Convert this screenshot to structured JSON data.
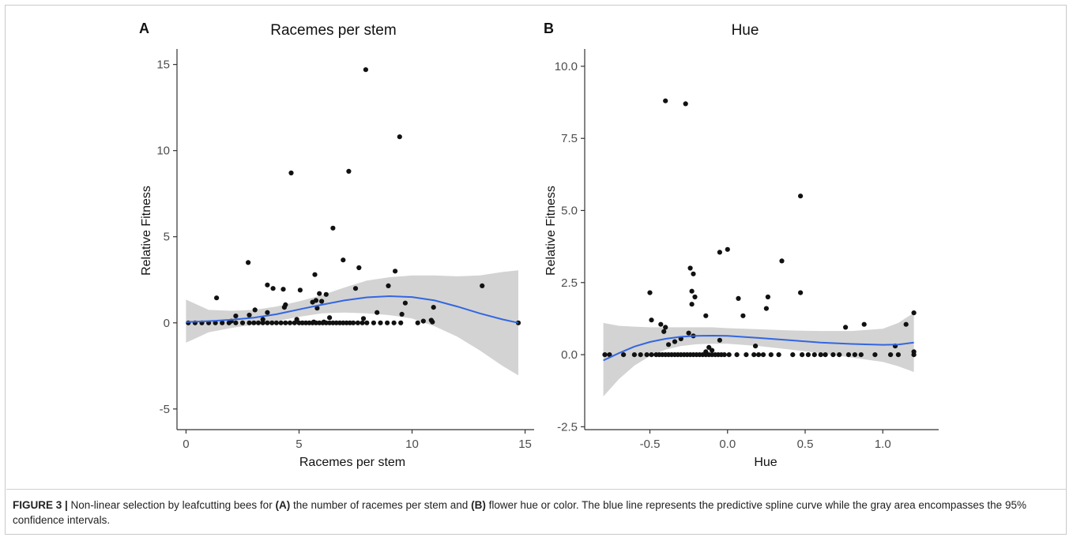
{
  "chart_data": [
    {
      "panel": "A",
      "type": "scatter",
      "title": "Racemes per stem",
      "xlabel": "Racemes per stem",
      "ylabel": "Relative Fitness",
      "xlim": [
        -0.4,
        15.4
      ],
      "ylim": [
        -6.2,
        15.9
      ],
      "xticks": [
        0,
        5,
        10,
        15
      ],
      "xtick_labels": [
        "0",
        "5",
        "10",
        "15"
      ],
      "yticks": [
        -5,
        0,
        5,
        10,
        15
      ],
      "ytick_labels": [
        "-5",
        "0",
        "5",
        "10",
        "15"
      ],
      "points": [
        [
          7.95,
          14.7
        ],
        [
          9.45,
          10.8
        ],
        [
          4.65,
          8.7
        ],
        [
          7.2,
          8.8
        ],
        [
          6.5,
          5.5
        ],
        [
          2.75,
          3.5
        ],
        [
          6.95,
          3.65
        ],
        [
          7.65,
          3.2
        ],
        [
          9.25,
          3.0
        ],
        [
          3.6,
          2.2
        ],
        [
          3.85,
          2.0
        ],
        [
          4.3,
          1.95
        ],
        [
          5.7,
          2.8
        ],
        [
          5.05,
          1.9
        ],
        [
          6.2,
          1.65
        ],
        [
          5.9,
          1.7
        ],
        [
          1.35,
          1.45
        ],
        [
          8.95,
          2.15
        ],
        [
          7.5,
          2.0
        ],
        [
          13.1,
          2.15
        ],
        [
          9.7,
          1.15
        ],
        [
          5.6,
          1.2
        ],
        [
          4.4,
          1.05
        ],
        [
          5.75,
          1.3
        ],
        [
          6.0,
          1.25
        ],
        [
          4.35,
          0.9
        ],
        [
          3.05,
          0.75
        ],
        [
          3.6,
          0.6
        ],
        [
          5.8,
          0.85
        ],
        [
          10.95,
          0.9
        ],
        [
          2.2,
          0.4
        ],
        [
          2.8,
          0.45
        ],
        [
          9.55,
          0.5
        ],
        [
          8.45,
          0.6
        ],
        [
          4.9,
          0.2
        ],
        [
          6.35,
          0.3
        ],
        [
          2.0,
          0.1
        ],
        [
          3.4,
          0.2
        ],
        [
          7.85,
          0.25
        ],
        [
          10.5,
          0.1
        ],
        [
          10.85,
          0.15
        ],
        [
          10.9,
          0.05
        ],
        [
          5.65,
          0.05
        ],
        [
          6.1,
          0.05
        ],
        [
          10.25,
          0.0
        ],
        [
          14.7,
          0.0
        ],
        [
          0.1,
          0.0
        ],
        [
          0.4,
          0.0
        ],
        [
          0.7,
          0.0
        ],
        [
          1.0,
          0.0
        ],
        [
          1.3,
          0.0
        ],
        [
          1.6,
          0.0
        ],
        [
          1.9,
          0.0
        ],
        [
          2.2,
          0.0
        ],
        [
          2.5,
          0.0
        ],
        [
          2.8,
          0.0
        ],
        [
          3.0,
          0.0
        ],
        [
          3.2,
          0.0
        ],
        [
          3.4,
          0.0
        ],
        [
          3.6,
          0.0
        ],
        [
          3.8,
          0.0
        ],
        [
          4.0,
          0.0
        ],
        [
          4.2,
          0.0
        ],
        [
          4.4,
          0.0
        ],
        [
          4.6,
          0.0
        ],
        [
          4.8,
          0.0
        ],
        [
          5.0,
          0.0
        ],
        [
          5.15,
          0.0
        ],
        [
          5.3,
          0.0
        ],
        [
          5.45,
          0.0
        ],
        [
          5.6,
          0.0
        ],
        [
          5.75,
          0.0
        ],
        [
          5.9,
          0.0
        ],
        [
          6.05,
          0.0
        ],
        [
          6.2,
          0.0
        ],
        [
          6.35,
          0.0
        ],
        [
          6.5,
          0.0
        ],
        [
          6.65,
          0.0
        ],
        [
          6.8,
          0.0
        ],
        [
          6.95,
          0.0
        ],
        [
          7.1,
          0.0
        ],
        [
          7.25,
          0.0
        ],
        [
          7.4,
          0.0
        ],
        [
          7.6,
          0.0
        ],
        [
          7.8,
          0.0
        ],
        [
          8.0,
          0.0
        ],
        [
          8.3,
          0.0
        ],
        [
          8.6,
          0.0
        ],
        [
          8.9,
          0.0
        ],
        [
          9.2,
          0.0
        ],
        [
          9.5,
          0.0
        ]
      ],
      "fit_curve": [
        [
          0,
          0.05
        ],
        [
          1,
          0.1
        ],
        [
          2,
          0.18
        ],
        [
          3,
          0.3
        ],
        [
          4,
          0.5
        ],
        [
          5,
          0.78
        ],
        [
          6,
          1.05
        ],
        [
          7,
          1.3
        ],
        [
          8,
          1.48
        ],
        [
          9,
          1.55
        ],
        [
          10,
          1.5
        ],
        [
          11,
          1.3
        ],
        [
          12,
          0.95
        ],
        [
          13,
          0.55
        ],
        [
          14,
          0.2
        ],
        [
          14.7,
          0.0
        ]
      ],
      "ci_upper": [
        [
          0,
          1.35
        ],
        [
          1,
          0.75
        ],
        [
          2,
          0.7
        ],
        [
          3,
          0.75
        ],
        [
          4,
          0.95
        ],
        [
          5,
          1.25
        ],
        [
          6,
          1.6
        ],
        [
          7,
          2.05
        ],
        [
          8,
          2.45
        ],
        [
          9,
          2.65
        ],
        [
          10,
          2.75
        ],
        [
          11,
          2.75
        ],
        [
          12,
          2.7
        ],
        [
          13,
          2.75
        ],
        [
          14,
          2.95
        ],
        [
          14.7,
          3.05
        ]
      ],
      "ci_lower": [
        [
          0,
          -1.15
        ],
        [
          1,
          -0.55
        ],
        [
          2,
          -0.3
        ],
        [
          3,
          -0.1
        ],
        [
          4,
          0.1
        ],
        [
          5,
          0.35
        ],
        [
          6,
          0.55
        ],
        [
          7,
          0.6
        ],
        [
          8,
          0.55
        ],
        [
          9,
          0.45
        ],
        [
          10,
          0.25
        ],
        [
          11,
          -0.2
        ],
        [
          12,
          -0.8
        ],
        [
          13,
          -1.6
        ],
        [
          14,
          -2.5
        ],
        [
          14.7,
          -3.05
        ]
      ]
    },
    {
      "panel": "B",
      "type": "scatter",
      "title": "Hue",
      "xlabel": "Hue",
      "ylabel": "Relative Fitness",
      "xlim": [
        -0.92,
        1.36
      ],
      "ylim": [
        -2.6,
        10.6
      ],
      "xticks": [
        -0.5,
        0.0,
        0.5,
        1.0
      ],
      "xtick_labels": [
        "-0.5",
        "0.0",
        "0.5",
        "1.0"
      ],
      "yticks": [
        -2.5,
        0.0,
        2.5,
        5.0,
        7.5,
        10.0
      ],
      "ytick_labels": [
        "-2.5",
        "0.0",
        "2.5",
        "5.0",
        "7.5",
        "10.0"
      ],
      "points": [
        [
          -0.4,
          8.8
        ],
        [
          -0.27,
          8.7
        ],
        [
          0.47,
          5.5
        ],
        [
          -0.05,
          3.55
        ],
        [
          0.0,
          3.65
        ],
        [
          0.35,
          3.25
        ],
        [
          -0.24,
          3.0
        ],
        [
          -0.22,
          2.8
        ],
        [
          -0.23,
          2.2
        ],
        [
          -0.5,
          2.15
        ],
        [
          0.47,
          2.15
        ],
        [
          -0.21,
          2.0
        ],
        [
          0.26,
          2.0
        ],
        [
          -0.23,
          1.75
        ],
        [
          0.07,
          1.95
        ],
        [
          0.25,
          1.6
        ],
        [
          0.1,
          1.35
        ],
        [
          -0.14,
          1.35
        ],
        [
          1.2,
          1.45
        ],
        [
          -0.49,
          1.2
        ],
        [
          -0.43,
          1.05
        ],
        [
          0.88,
          1.05
        ],
        [
          1.15,
          1.05
        ],
        [
          -0.4,
          0.95
        ],
        [
          -0.41,
          0.8
        ],
        [
          0.76,
          0.95
        ],
        [
          -0.3,
          0.55
        ],
        [
          -0.22,
          0.65
        ],
        [
          -0.25,
          0.75
        ],
        [
          -0.05,
          0.5
        ],
        [
          0.18,
          0.3
        ],
        [
          -0.34,
          0.45
        ],
        [
          -0.38,
          0.35
        ],
        [
          -0.12,
          0.25
        ],
        [
          -0.1,
          0.15
        ],
        [
          -0.14,
          0.1
        ],
        [
          1.08,
          0.3
        ],
        [
          1.2,
          0.1
        ],
        [
          -0.79,
          0.0
        ],
        [
          -0.76,
          0.0
        ],
        [
          -0.67,
          0.0
        ],
        [
          -0.6,
          0.0
        ],
        [
          -0.56,
          0.0
        ],
        [
          -0.52,
          0.0
        ],
        [
          -0.49,
          0.0
        ],
        [
          -0.46,
          0.0
        ],
        [
          -0.44,
          0.0
        ],
        [
          -0.42,
          0.0
        ],
        [
          -0.4,
          0.0
        ],
        [
          -0.38,
          0.0
        ],
        [
          -0.36,
          0.0
        ],
        [
          -0.34,
          0.0
        ],
        [
          -0.32,
          0.0
        ],
        [
          -0.3,
          0.0
        ],
        [
          -0.28,
          0.0
        ],
        [
          -0.26,
          0.0
        ],
        [
          -0.24,
          0.0
        ],
        [
          -0.22,
          0.0
        ],
        [
          -0.2,
          0.0
        ],
        [
          -0.18,
          0.0
        ],
        [
          -0.16,
          0.0
        ],
        [
          -0.14,
          0.0
        ],
        [
          -0.12,
          0.0
        ],
        [
          -0.1,
          0.0
        ],
        [
          -0.08,
          0.0
        ],
        [
          -0.06,
          0.0
        ],
        [
          -0.04,
          0.0
        ],
        [
          -0.02,
          0.0
        ],
        [
          0.01,
          0.0
        ],
        [
          0.06,
          0.0
        ],
        [
          0.12,
          0.0
        ],
        [
          0.17,
          0.0
        ],
        [
          0.2,
          0.0
        ],
        [
          0.23,
          0.0
        ],
        [
          0.28,
          0.0
        ],
        [
          0.33,
          0.0
        ],
        [
          0.42,
          0.0
        ],
        [
          0.48,
          0.0
        ],
        [
          0.52,
          0.0
        ],
        [
          0.56,
          0.0
        ],
        [
          0.6,
          0.0
        ],
        [
          0.63,
          0.0
        ],
        [
          0.68,
          0.0
        ],
        [
          0.72,
          0.0
        ],
        [
          0.78,
          0.0
        ],
        [
          0.82,
          0.0
        ],
        [
          0.86,
          0.0
        ],
        [
          0.95,
          0.0
        ],
        [
          1.05,
          0.0
        ],
        [
          1.1,
          0.0
        ],
        [
          1.2,
          0.0
        ]
      ],
      "fit_curve": [
        [
          -0.8,
          -0.2
        ],
        [
          -0.7,
          0.05
        ],
        [
          -0.6,
          0.28
        ],
        [
          -0.5,
          0.44
        ],
        [
          -0.4,
          0.55
        ],
        [
          -0.3,
          0.62
        ],
        [
          -0.2,
          0.65
        ],
        [
          -0.1,
          0.66
        ],
        [
          0.0,
          0.65
        ],
        [
          0.2,
          0.58
        ],
        [
          0.4,
          0.5
        ],
        [
          0.6,
          0.42
        ],
        [
          0.8,
          0.37
        ],
        [
          1.0,
          0.34
        ],
        [
          1.1,
          0.35
        ],
        [
          1.2,
          0.42
        ]
      ],
      "ci_upper": [
        [
          -0.8,
          1.1
        ],
        [
          -0.7,
          1.0
        ],
        [
          -0.6,
          0.97
        ],
        [
          -0.5,
          0.95
        ],
        [
          -0.4,
          0.95
        ],
        [
          -0.3,
          0.95
        ],
        [
          -0.2,
          0.95
        ],
        [
          -0.1,
          0.95
        ],
        [
          0.0,
          0.92
        ],
        [
          0.2,
          0.88
        ],
        [
          0.4,
          0.84
        ],
        [
          0.6,
          0.82
        ],
        [
          0.8,
          0.82
        ],
        [
          1.0,
          0.9
        ],
        [
          1.1,
          1.1
        ],
        [
          1.2,
          1.45
        ]
      ],
      "ci_lower": [
        [
          -0.8,
          -1.45
        ],
        [
          -0.7,
          -0.85
        ],
        [
          -0.6,
          -0.38
        ],
        [
          -0.5,
          -0.05
        ],
        [
          -0.4,
          0.17
        ],
        [
          -0.3,
          0.3
        ],
        [
          -0.2,
          0.36
        ],
        [
          -0.1,
          0.38
        ],
        [
          0.0,
          0.38
        ],
        [
          0.2,
          0.3
        ],
        [
          0.4,
          0.18
        ],
        [
          0.6,
          0.05
        ],
        [
          0.8,
          -0.1
        ],
        [
          1.0,
          -0.25
        ],
        [
          1.1,
          -0.4
        ],
        [
          1.2,
          -0.6
        ]
      ]
    }
  ],
  "colors": {
    "fit_line": "#3366e0",
    "ci_band": "#d3d3d3",
    "points": "#111111",
    "axis": "#333333",
    "tick_text": "#4d4d4d"
  },
  "caption": {
    "label": "FIGURE 3 |",
    "t1": " Non-linear selection by leafcutting bees for ",
    "a": "(A)",
    "t2": " the number of racemes per stem and ",
    "b": "(B)",
    "t3": " flower hue or color. The blue line represents the predictive spline curve while the gray area encompasses the 95% confidence intervals."
  }
}
